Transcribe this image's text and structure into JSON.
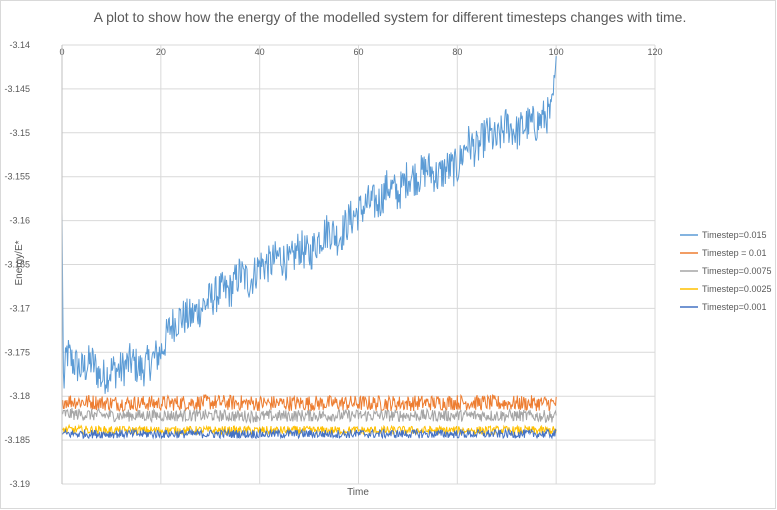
{
  "chart_data": {
    "type": "line",
    "title": "A plot to show how the energy of the modelled system for different timesteps  changes with time.",
    "xlabel": "Time",
    "ylabel": "Energy/E*",
    "xlim": [
      0,
      120
    ],
    "ylim": [
      -3.19,
      -3.14
    ],
    "x_ticks": [
      0,
      20,
      40,
      60,
      80,
      100,
      120
    ],
    "y_ticks": [
      -3.14,
      -3.145,
      -3.15,
      -3.155,
      -3.16,
      -3.165,
      -3.17,
      -3.175,
      -3.18,
      -3.185,
      -3.19
    ],
    "grid": true,
    "legend_position": "right",
    "series": [
      {
        "name": "Timestep=0.015",
        "color": "#5B9BD5",
        "x": [
          0,
          0.3,
          1,
          2,
          4,
          6,
          8,
          10,
          12,
          14,
          16,
          18,
          20,
          22,
          24,
          26,
          28,
          30,
          32,
          34,
          36,
          38,
          40,
          42,
          44,
          46,
          48,
          50,
          52,
          54,
          56,
          58,
          60,
          62,
          64,
          66,
          68,
          70,
          72,
          74,
          76,
          78,
          80,
          82,
          84,
          86,
          88,
          90,
          92,
          94,
          96,
          98,
          99,
          100
        ],
        "y": [
          -3.159,
          -3.179,
          -3.175,
          -3.176,
          -3.177,
          -3.176,
          -3.178,
          -3.177,
          -3.177,
          -3.176,
          -3.177,
          -3.176,
          -3.175,
          -3.172,
          -3.171,
          -3.171,
          -3.17,
          -3.169,
          -3.168,
          -3.168,
          -3.166,
          -3.167,
          -3.165,
          -3.165,
          -3.164,
          -3.165,
          -3.163,
          -3.164,
          -3.162,
          -3.161,
          -3.162,
          -3.16,
          -3.159,
          -3.158,
          -3.158,
          -3.156,
          -3.157,
          -3.155,
          -3.155,
          -3.154,
          -3.155,
          -3.154,
          -3.154,
          -3.151,
          -3.152,
          -3.15,
          -3.151,
          -3.149,
          -3.15,
          -3.149,
          -3.149,
          -3.148,
          -3.148,
          -3.143
        ]
      },
      {
        "name": "Timestep = 0.01",
        "color": "#ED7D31",
        "x": [
          0,
          10,
          20,
          30,
          40,
          50,
          60,
          70,
          80,
          90,
          100
        ],
        "y": [
          -3.1805,
          -3.1808,
          -3.1808,
          -3.1807,
          -3.1808,
          -3.1808,
          -3.1808,
          -3.1808,
          -3.1807,
          -3.1808,
          -3.1808
        ]
      },
      {
        "name": "Timestep=0.0075",
        "color": "#A5A5A5",
        "x": [
          0,
          10,
          20,
          30,
          40,
          50,
          60,
          70,
          80,
          90,
          100
        ],
        "y": [
          -3.182,
          -3.1822,
          -3.1822,
          -3.1822,
          -3.1823,
          -3.1822,
          -3.1822,
          -3.1822,
          -3.1822,
          -3.1822,
          -3.1823
        ]
      },
      {
        "name": "Timestep=0.0025",
        "color": "#FFC000",
        "x": [
          0,
          10,
          20,
          30,
          40,
          50,
          60,
          70,
          80,
          90,
          100
        ],
        "y": [
          -3.1838,
          -3.1839,
          -3.1839,
          -3.1839,
          -3.1839,
          -3.1839,
          -3.1839,
          -3.1839,
          -3.1839,
          -3.1839,
          -3.1839
        ]
      },
      {
        "name": "Timestep=0.001",
        "color": "#4472C4",
        "x": [
          0,
          10,
          20,
          30,
          40,
          50,
          60,
          70,
          80,
          90,
          100
        ],
        "y": [
          -3.1843,
          -3.1843,
          -3.1843,
          -3.1843,
          -3.1843,
          -3.1843,
          -3.1843,
          -3.1843,
          -3.1843,
          -3.1843,
          -3.1843
        ]
      }
    ]
  }
}
